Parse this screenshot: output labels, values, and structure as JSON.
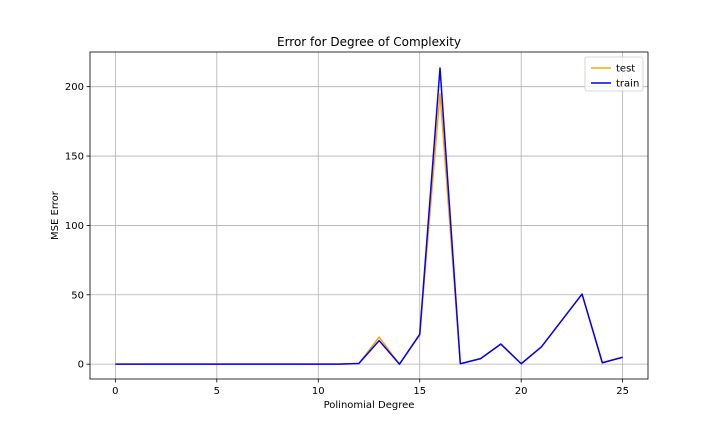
{
  "chart_data": {
    "type": "line",
    "title": "Error for Degree of Complexity",
    "xlabel": "Polinomial Degree",
    "ylabel": "MSE Error",
    "xlim": [
      -1.25,
      26.25
    ],
    "ylim": [
      -10.7,
      225
    ],
    "x_ticks": [
      0,
      5,
      10,
      15,
      20,
      25
    ],
    "y_ticks": [
      0,
      50,
      100,
      150,
      200
    ],
    "grid": true,
    "legend_position": "top-right",
    "x": [
      0,
      1,
      2,
      3,
      4,
      5,
      6,
      7,
      8,
      9,
      10,
      11,
      12,
      13,
      14,
      15,
      16,
      17,
      18,
      19,
      20,
      21,
      22,
      23,
      24,
      25
    ],
    "series": [
      {
        "name": "test",
        "color": "#ffa500",
        "values": [
          0,
          0,
          0,
          0,
          0,
          0,
          0,
          0,
          0,
          0,
          0,
          0,
          0.5,
          19.5,
          0,
          21,
          195,
          0.3,
          4,
          14.5,
          0.3,
          12.5,
          31.5,
          50.5,
          1,
          5
        ]
      },
      {
        "name": "train",
        "color": "#0000ff",
        "values": [
          0,
          0,
          0,
          0,
          0,
          0,
          0,
          0,
          0,
          0,
          0,
          0,
          0.5,
          17,
          0,
          21.5,
          213.5,
          0.3,
          4,
          14.5,
          0.3,
          12.5,
          31.5,
          50.5,
          1,
          5
        ]
      }
    ]
  }
}
